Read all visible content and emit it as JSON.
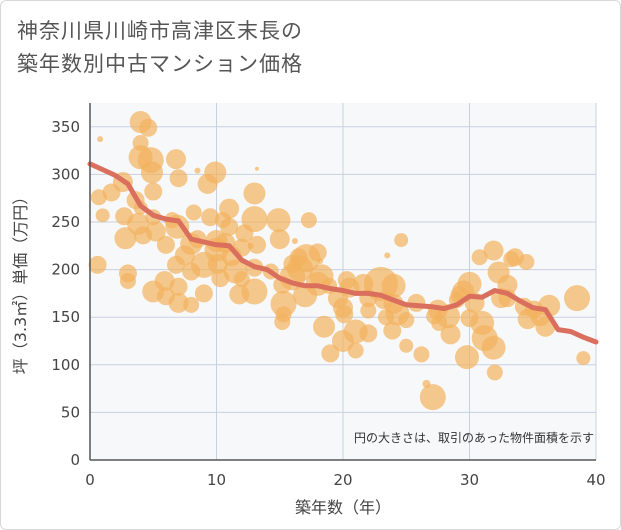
{
  "title_line1": "神奈川県川崎市高津区末長の",
  "title_line2": "築年数別中古マンション価格",
  "chart_data": {
    "type": "scatter",
    "xlabel": "築年数（年）",
    "ylabel": "坪（3.3㎡）単価（万円）",
    "xlim": [
      0,
      40
    ],
    "ylim": [
      0,
      375
    ],
    "xticks": [
      0,
      10,
      20,
      30,
      40
    ],
    "yticks": [
      0,
      50,
      100,
      150,
      200,
      250,
      300,
      350
    ],
    "grid": true,
    "note": "円の大きさは、取引のあった物件面積を示す",
    "colors": {
      "bubble": "#f2b25c",
      "trend": "#d96f5c",
      "plot_bg": "#f7f8fa",
      "grid": "#c8d0e0"
    },
    "points": [
      [
        0.6,
        205,
        9
      ],
      [
        0.7,
        276,
        8
      ],
      [
        1,
        257,
        7
      ],
      [
        1.7,
        281,
        9
      ],
      [
        2.6,
        292,
        10
      ],
      [
        2.7,
        256,
        9
      ],
      [
        2.8,
        233,
        11
      ],
      [
        3,
        196,
        9
      ],
      [
        3,
        188,
        8
      ],
      [
        3.6,
        273,
        9
      ],
      [
        3.8,
        248,
        11
      ],
      [
        4,
        355,
        11
      ],
      [
        4,
        333,
        8
      ],
      [
        4,
        318,
        12
      ],
      [
        4,
        265,
        7
      ],
      [
        4.2,
        236,
        9
      ],
      [
        4.6,
        349,
        9
      ],
      [
        4.8,
        315,
        13
      ],
      [
        4.9,
        302,
        11
      ],
      [
        5,
        282,
        9
      ],
      [
        5,
        255,
        8
      ],
      [
        5.2,
        240,
        10
      ],
      [
        5,
        177,
        11
      ],
      [
        6,
        226,
        9
      ],
      [
        5.9,
        188,
        10
      ],
      [
        6,
        172,
        9
      ],
      [
        6.5,
        252,
        8
      ],
      [
        6.8,
        316,
        10
      ],
      [
        7,
        296,
        9
      ],
      [
        6.9,
        245,
        12
      ],
      [
        6.8,
        205,
        9
      ],
      [
        7,
        182,
        9
      ],
      [
        7,
        165,
        10
      ],
      [
        7.5,
        215,
        10
      ],
      [
        8,
        227,
        11
      ],
      [
        8,
        198,
        9
      ],
      [
        8,
        163,
        8
      ],
      [
        8.2,
        260,
        8
      ],
      [
        8.5,
        232,
        9
      ],
      [
        9,
        205,
        13
      ],
      [
        9,
        175,
        9
      ],
      [
        9.3,
        290,
        10
      ],
      [
        9.5,
        255,
        9
      ],
      [
        9.9,
        302,
        11
      ],
      [
        10,
        230,
        11
      ],
      [
        10,
        221,
        12
      ],
      [
        10.1,
        206,
        10
      ],
      [
        10.3,
        191,
        9
      ],
      [
        10.5,
        252,
        8
      ],
      [
        10.7,
        228,
        10
      ],
      [
        11,
        264,
        10
      ],
      [
        11,
        245,
        9
      ],
      [
        11.2,
        214,
        10
      ],
      [
        11.5,
        198,
        12
      ],
      [
        11.8,
        174,
        10
      ],
      [
        12,
        223,
        9
      ],
      [
        12,
        190,
        8
      ],
      [
        12.2,
        238,
        9
      ],
      [
        13,
        253,
        13
      ],
      [
        13,
        280,
        11
      ],
      [
        13,
        202,
        9
      ],
      [
        13,
        177,
        13
      ],
      [
        13.2,
        226,
        9
      ],
      [
        14.3,
        198,
        8
      ],
      [
        14.9,
        252,
        12
      ],
      [
        15,
        232,
        10
      ],
      [
        15.2,
        184,
        9
      ],
      [
        15.3,
        164,
        13
      ],
      [
        15.3,
        153,
        8
      ],
      [
        15.2,
        145,
        8
      ],
      [
        16,
        206,
        9
      ],
      [
        16,
        192,
        13
      ],
      [
        16.5,
        213,
        9
      ],
      [
        16.6,
        201,
        13
      ],
      [
        17.1,
        212,
        14
      ],
      [
        17,
        173,
        12
      ],
      [
        18,
        185,
        12
      ],
      [
        17.3,
        252,
        8
      ],
      [
        18,
        218,
        9
      ],
      [
        18.3,
        193,
        12
      ],
      [
        18.5,
        140,
        11
      ],
      [
        18.9,
        183,
        8
      ],
      [
        19,
        112,
        9
      ],
      [
        19.6,
        170,
        10
      ],
      [
        20,
        160,
        10
      ],
      [
        20.1,
        153,
        9
      ],
      [
        20,
        125,
        11
      ],
      [
        20.3,
        189,
        9
      ],
      [
        20.5,
        181,
        10
      ],
      [
        21,
        135,
        12
      ],
      [
        21,
        115,
        8
      ],
      [
        21.6,
        185,
        10
      ],
      [
        22,
        170,
        9
      ],
      [
        22,
        157,
        8
      ],
      [
        22,
        133,
        9
      ],
      [
        23,
        185,
        17
      ],
      [
        23.2,
        168,
        9
      ],
      [
        23.4,
        150,
        8
      ],
      [
        23.9,
        136,
        9
      ],
      [
        24,
        183,
        12
      ],
      [
        24,
        164,
        10
      ],
      [
        24.3,
        154,
        12
      ],
      [
        24.6,
        231,
        7
      ],
      [
        25,
        147,
        8
      ],
      [
        25,
        120,
        7
      ],
      [
        25.8,
        165,
        9
      ],
      [
        26.2,
        111,
        8
      ],
      [
        26.6,
        80,
        4
      ],
      [
        27.1,
        66,
        13
      ],
      [
        27.2,
        151,
        8
      ],
      [
        27.5,
        158,
        10
      ],
      [
        27.6,
        144,
        8
      ],
      [
        28.3,
        151,
        12
      ],
      [
        28.5,
        132,
        10
      ],
      [
        29,
        168,
        8
      ],
      [
        29.2,
        173,
        9
      ],
      [
        29.5,
        177,
        11
      ],
      [
        29.8,
        108,
        12
      ],
      [
        30,
        185,
        12
      ],
      [
        30,
        149,
        9
      ],
      [
        30.4,
        165,
        10
      ],
      [
        30.8,
        213,
        8
      ],
      [
        31,
        144,
        12
      ],
      [
        31.2,
        128,
        13
      ],
      [
        31.9,
        220,
        10
      ],
      [
        31.9,
        118,
        12
      ],
      [
        32,
        92,
        8
      ],
      [
        32.3,
        197,
        11
      ],
      [
        32.5,
        170,
        10
      ],
      [
        33,
        184,
        10
      ],
      [
        33,
        170,
        9
      ],
      [
        33.3,
        211,
        8
      ],
      [
        33.6,
        213,
        9
      ],
      [
        34.3,
        161,
        9
      ],
      [
        34.5,
        208,
        8
      ],
      [
        34.6,
        148,
        10
      ],
      [
        35.1,
        158,
        9
      ],
      [
        35.6,
        151,
        10
      ],
      [
        36,
        140,
        10
      ],
      [
        36.3,
        162,
        11
      ],
      [
        38.5,
        170,
        13
      ],
      [
        39,
        107,
        7
      ],
      [
        8.5,
        304,
        3
      ],
      [
        0.8,
        337,
        3
      ],
      [
        13.2,
        306,
        2
      ],
      [
        12.7,
        225,
        3
      ],
      [
        18.2,
        209,
        3
      ],
      [
        23.5,
        215,
        3
      ],
      [
        16.2,
        230,
        3
      ],
      [
        35.3,
        156,
        3
      ]
    ],
    "trend": [
      [
        0,
        311
      ],
      [
        1,
        305
      ],
      [
        2,
        299
      ],
      [
        3,
        290
      ],
      [
        4,
        267
      ],
      [
        5,
        257
      ],
      [
        6,
        253
      ],
      [
        7,
        251
      ],
      [
        8,
        232
      ],
      [
        9,
        229
      ],
      [
        10,
        226
      ],
      [
        11,
        225
      ],
      [
        12,
        210
      ],
      [
        13,
        203
      ],
      [
        14,
        200
      ],
      [
        15,
        191
      ],
      [
        16,
        186
      ],
      [
        17,
        183
      ],
      [
        18,
        183
      ],
      [
        19,
        180
      ],
      [
        20,
        178
      ],
      [
        21,
        175
      ],
      [
        22,
        175
      ],
      [
        23,
        173
      ],
      [
        24,
        168
      ],
      [
        25,
        163
      ],
      [
        26,
        162
      ],
      [
        27,
        161
      ],
      [
        28,
        159
      ],
      [
        29,
        163
      ],
      [
        30,
        172
      ],
      [
        31,
        171
      ],
      [
        32,
        178
      ],
      [
        33,
        175
      ],
      [
        34,
        167
      ],
      [
        35,
        160
      ],
      [
        36,
        158
      ],
      [
        37,
        137
      ],
      [
        38,
        135
      ],
      [
        39,
        129
      ],
      [
        40,
        124
      ]
    ]
  }
}
